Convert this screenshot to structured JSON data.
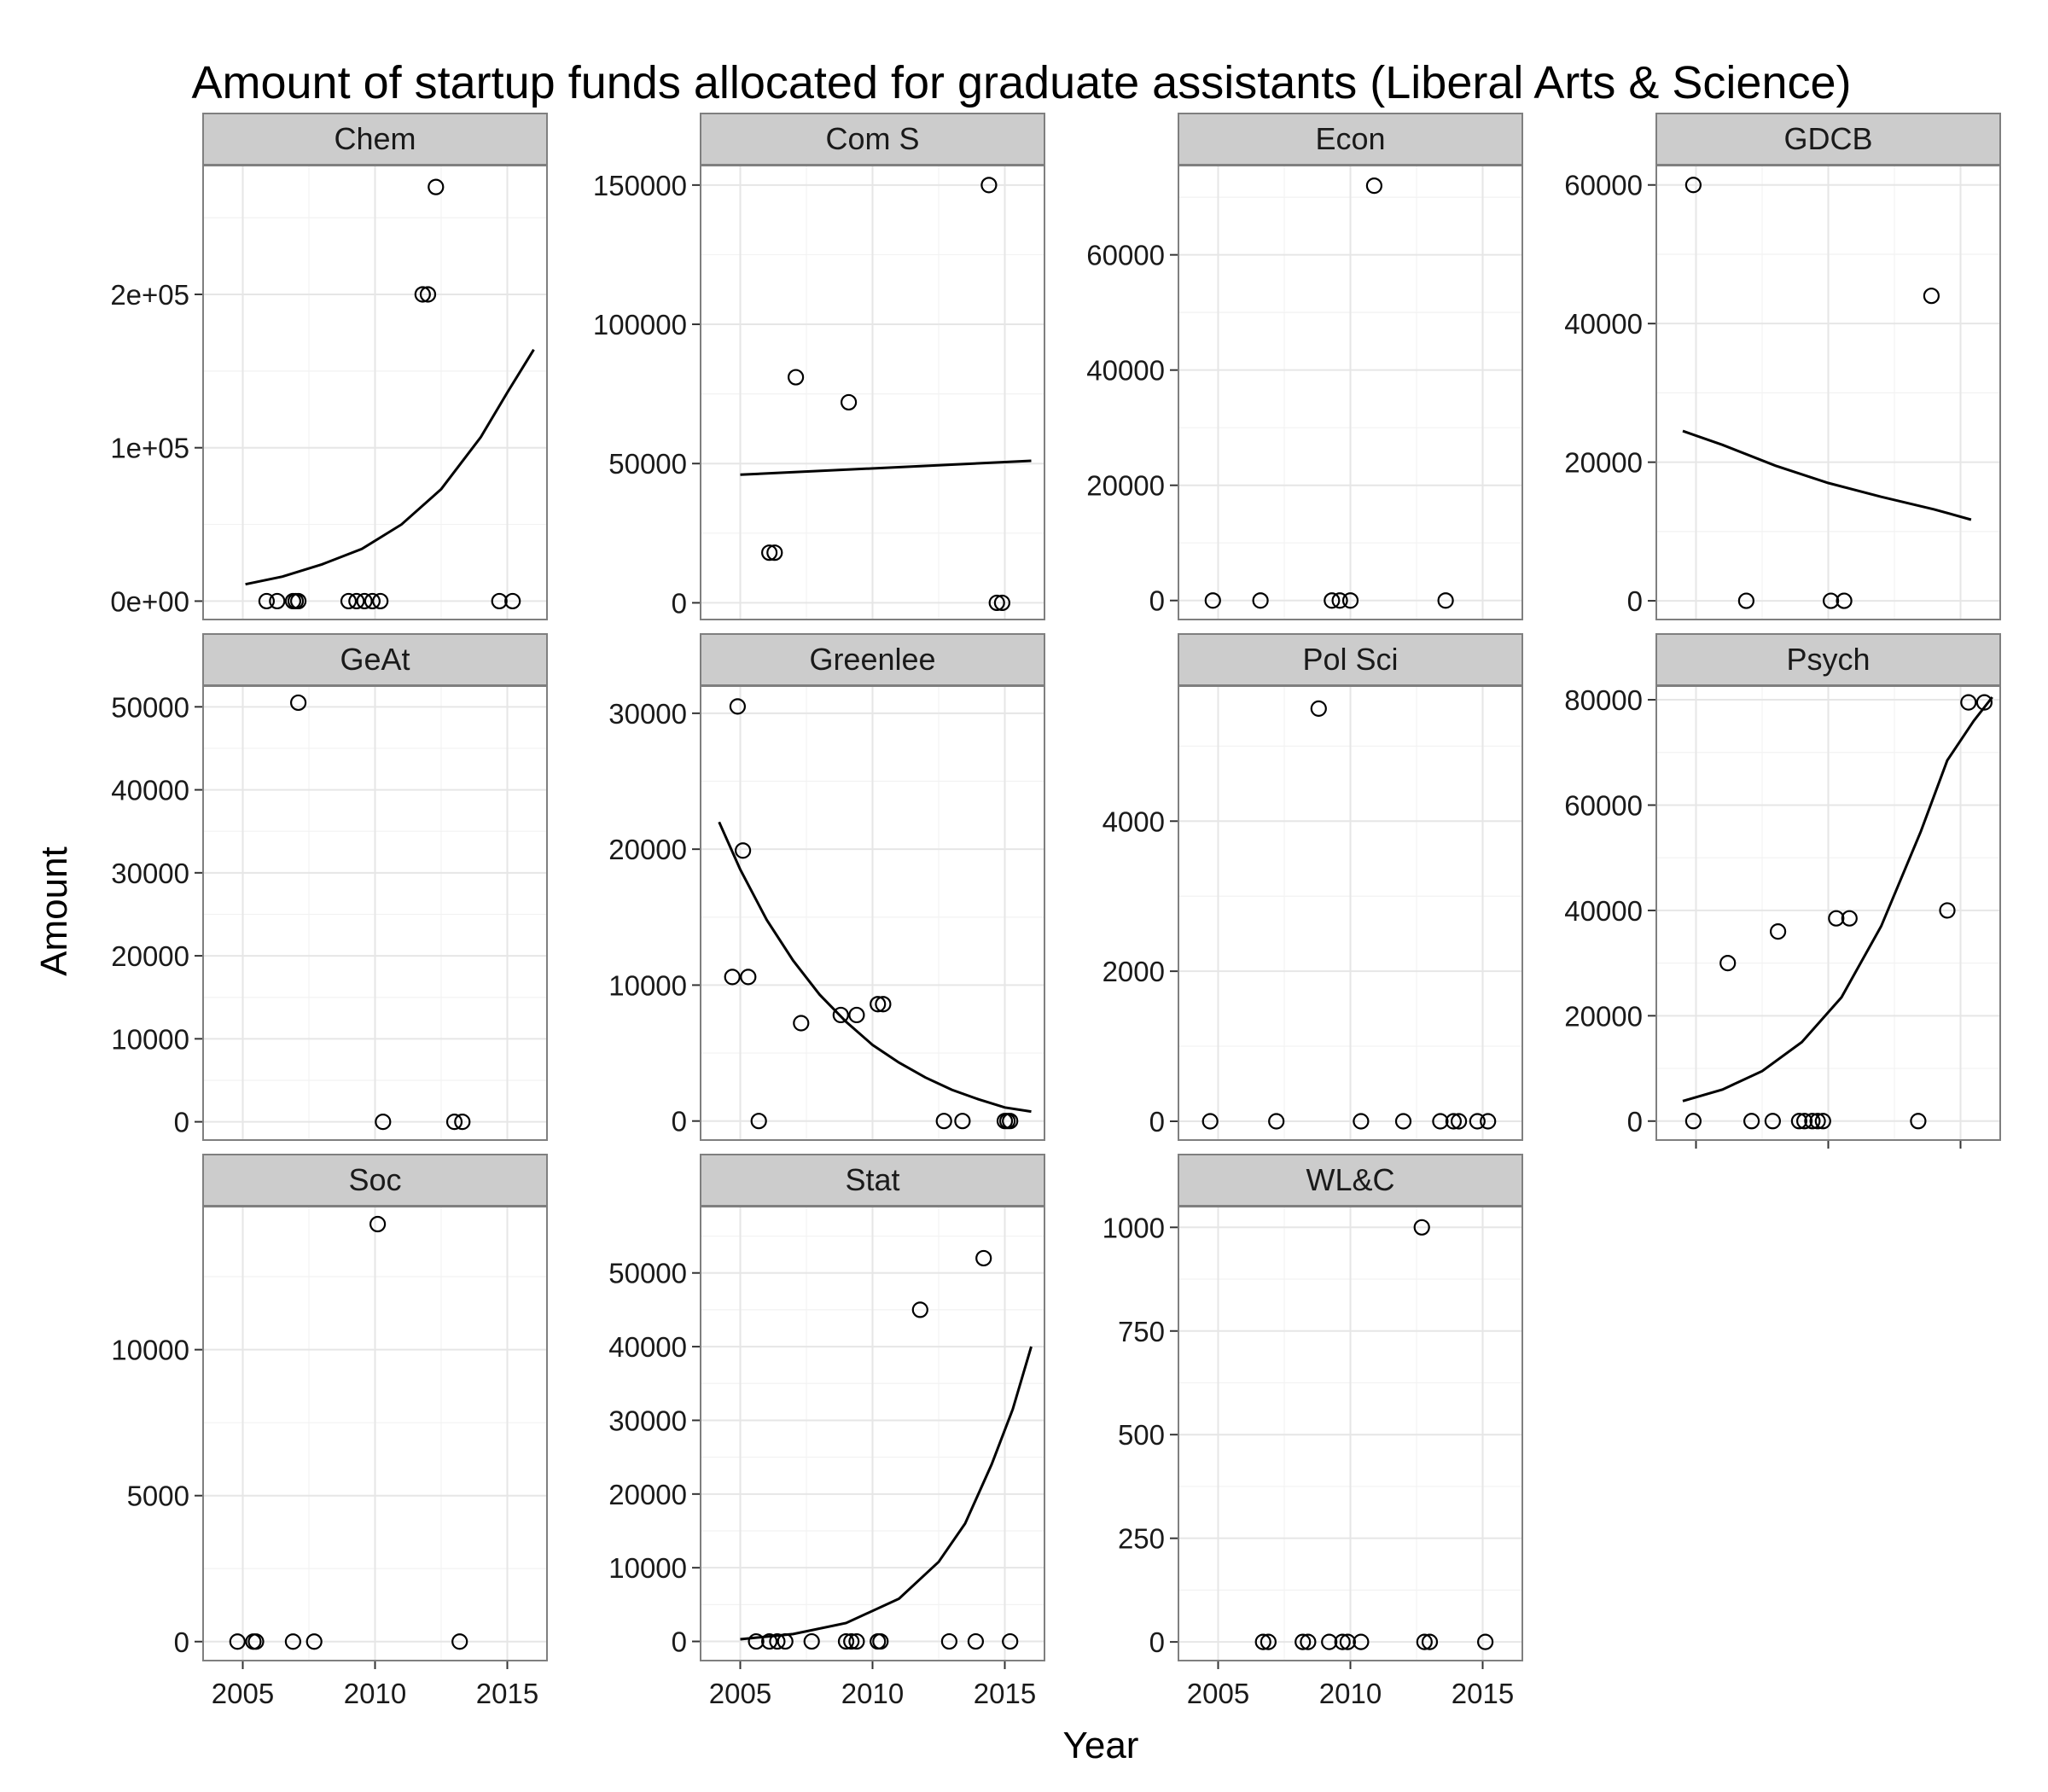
{
  "chart_data": {
    "type": "scatter",
    "title": "Amount of startup funds allocated for graduate assistants (Liberal Arts & Science)",
    "xlabel": "Year",
    "ylabel": "Amount",
    "x_ticks": [
      2005,
      2010,
      2015
    ],
    "xlim": [
      2003.5,
      2016.5
    ],
    "grid": true,
    "panels": [
      {
        "name": "Chem",
        "ylim": [
          -12000,
          284000
        ],
        "y_ticks": [
          0,
          100000,
          200000
        ],
        "y_tick_labels": [
          "0e+00",
          "1e+05",
          "2e+05"
        ],
        "points": [
          [
            2005.9,
            0
          ],
          [
            2006.3,
            0
          ],
          [
            2006.9,
            0
          ],
          [
            2007.0,
            0
          ],
          [
            2007.1,
            0
          ],
          [
            2009.0,
            0
          ],
          [
            2009.3,
            0
          ],
          [
            2009.6,
            0
          ],
          [
            2009.9,
            0
          ],
          [
            2010.2,
            0
          ],
          [
            2011.8,
            200000
          ],
          [
            2012.0,
            200000
          ],
          [
            2012.3,
            270000
          ],
          [
            2014.7,
            0
          ],
          [
            2015.2,
            0
          ]
        ],
        "fit": [
          [
            2005.1,
            11000
          ],
          [
            2006.5,
            16000
          ],
          [
            2008.0,
            24000
          ],
          [
            2009.5,
            34000
          ],
          [
            2011.0,
            50000
          ],
          [
            2012.5,
            73000
          ],
          [
            2014.0,
            107000
          ],
          [
            2015.0,
            136000
          ],
          [
            2016.0,
            164000
          ]
        ]
      },
      {
        "name": "Com S",
        "ylim": [
          -6000,
          157000
        ],
        "y_ticks": [
          0,
          50000,
          100000,
          150000
        ],
        "y_tick_labels": [
          "0",
          "50000",
          "100000",
          "150000"
        ],
        "points": [
          [
            2006.1,
            18000
          ],
          [
            2006.3,
            18000
          ],
          [
            2007.1,
            81000
          ],
          [
            2009.1,
            72000
          ],
          [
            2014.4,
            150000
          ],
          [
            2014.7,
            0
          ],
          [
            2014.9,
            0
          ]
        ],
        "fit": [
          [
            2005.0,
            46000
          ],
          [
            2016.0,
            51000
          ]
        ]
      },
      {
        "name": "Econ",
        "ylim": [
          -3300,
          75500
        ],
        "y_ticks": [
          0,
          20000,
          40000,
          60000
        ],
        "y_tick_labels": [
          "0",
          "20000",
          "40000",
          "60000"
        ],
        "points": [
          [
            2004.8,
            0
          ],
          [
            2006.6,
            0
          ],
          [
            2009.3,
            0
          ],
          [
            2009.6,
            0
          ],
          [
            2010.0,
            0
          ],
          [
            2010.9,
            72000
          ],
          [
            2013.6,
            0
          ]
        ],
        "fit": []
      },
      {
        "name": "GDCB",
        "ylim": [
          -2700,
          62800
        ],
        "y_ticks": [
          0,
          20000,
          40000,
          60000
        ],
        "y_tick_labels": [
          "0",
          "20000",
          "40000",
          "60000"
        ],
        "points": [
          [
            2004.9,
            60000
          ],
          [
            2006.9,
            0
          ],
          [
            2010.1,
            0
          ],
          [
            2010.6,
            0
          ],
          [
            2013.9,
            44000
          ]
        ],
        "fit": [
          [
            2004.5,
            24500
          ],
          [
            2006.0,
            22500
          ],
          [
            2008.0,
            19500
          ],
          [
            2010.0,
            17000
          ],
          [
            2012.0,
            15000
          ],
          [
            2014.0,
            13200
          ],
          [
            2015.4,
            11700
          ]
        ]
      },
      {
        "name": "GeAt",
        "ylim": [
          -2200,
          52500
        ],
        "y_ticks": [
          0,
          10000,
          20000,
          30000,
          40000,
          50000
        ],
        "y_tick_labels": [
          "0",
          "10000",
          "20000",
          "30000",
          "40000",
          "50000"
        ],
        "points": [
          [
            2007.1,
            50500
          ],
          [
            2010.3,
            0
          ],
          [
            2013.0,
            0
          ],
          [
            2013.3,
            0
          ]
        ],
        "fit": []
      },
      {
        "name": "Greenlee",
        "ylim": [
          -1400,
          32000
        ],
        "y_ticks": [
          0,
          10000,
          20000,
          30000
        ],
        "y_tick_labels": [
          "0",
          "10000",
          "20000",
          "30000"
        ],
        "points": [
          [
            2004.7,
            10600
          ],
          [
            2004.9,
            30500
          ],
          [
            2005.1,
            19900
          ],
          [
            2005.3,
            10600
          ],
          [
            2005.7,
            0
          ],
          [
            2007.3,
            7200
          ],
          [
            2008.8,
            7800
          ],
          [
            2009.4,
            7800
          ],
          [
            2010.2,
            8600
          ],
          [
            2010.4,
            8600
          ],
          [
            2012.7,
            0
          ],
          [
            2013.4,
            0
          ],
          [
            2015.0,
            0
          ],
          [
            2015.1,
            0
          ],
          [
            2015.2,
            0
          ]
        ],
        "fit": [
          [
            2004.2,
            22000
          ],
          [
            2005.0,
            18500
          ],
          [
            2006.0,
            14800
          ],
          [
            2007.0,
            11800
          ],
          [
            2008.0,
            9300
          ],
          [
            2009.0,
            7300
          ],
          [
            2010.0,
            5600
          ],
          [
            2011.0,
            4300
          ],
          [
            2012.0,
            3200
          ],
          [
            2013.0,
            2300
          ],
          [
            2014.0,
            1600
          ],
          [
            2015.0,
            1000
          ],
          [
            2016.0,
            700
          ]
        ]
      },
      {
        "name": "Pol Sci",
        "ylim": [
          -250,
          5800
        ],
        "y_ticks": [
          0,
          2000,
          4000
        ],
        "y_tick_labels": [
          "0",
          "2000",
          "4000"
        ],
        "points": [
          [
            2004.7,
            0
          ],
          [
            2007.2,
            0
          ],
          [
            2008.8,
            5500
          ],
          [
            2010.4,
            0
          ],
          [
            2012.0,
            0
          ],
          [
            2013.4,
            0
          ],
          [
            2013.9,
            0
          ],
          [
            2014.1,
            0
          ],
          [
            2014.8,
            0
          ],
          [
            2015.2,
            0
          ]
        ],
        "fit": []
      },
      {
        "name": "Psych",
        "ylim": [
          -3600,
          82600
        ],
        "y_ticks": [
          0,
          20000,
          40000,
          60000,
          80000
        ],
        "y_tick_labels": [
          "0",
          "20000",
          "40000",
          "60000",
          "80000"
        ],
        "points": [
          [
            2004.9,
            0
          ],
          [
            2006.2,
            30000
          ],
          [
            2007.1,
            0
          ],
          [
            2007.9,
            0
          ],
          [
            2008.1,
            36000
          ],
          [
            2008.9,
            0
          ],
          [
            2009.1,
            0
          ],
          [
            2009.4,
            0
          ],
          [
            2009.6,
            0
          ],
          [
            2009.8,
            0
          ],
          [
            2010.3,
            38500
          ],
          [
            2010.8,
            38500
          ],
          [
            2013.4,
            0
          ],
          [
            2014.5,
            40000
          ],
          [
            2015.3,
            79500
          ],
          [
            2015.9,
            79500
          ]
        ],
        "fit": [
          [
            2004.5,
            3800
          ],
          [
            2006.0,
            6000
          ],
          [
            2007.5,
            9500
          ],
          [
            2009.0,
            15000
          ],
          [
            2010.5,
            23500
          ],
          [
            2012.0,
            37000
          ],
          [
            2013.5,
            55000
          ],
          [
            2014.5,
            68500
          ],
          [
            2015.5,
            76000
          ],
          [
            2016.2,
            80500
          ]
        ]
      },
      {
        "name": "Soc",
        "ylim": [
          -650,
          14900
        ],
        "y_ticks": [
          0,
          5000,
          10000
        ],
        "y_tick_labels": [
          "0",
          "5000",
          "10000"
        ],
        "points": [
          [
            2004.8,
            0
          ],
          [
            2005.4,
            0
          ],
          [
            2005.5,
            0
          ],
          [
            2006.9,
            0
          ],
          [
            2007.7,
            0
          ],
          [
            2010.1,
            14300
          ],
          [
            2013.2,
            0
          ]
        ],
        "fit": []
      },
      {
        "name": "Stat",
        "ylim": [
          -2600,
          59000
        ],
        "y_ticks": [
          0,
          10000,
          20000,
          30000,
          40000,
          50000
        ],
        "y_tick_labels": [
          "0",
          "10000",
          "20000",
          "30000",
          "40000",
          "50000"
        ],
        "points": [
          [
            2005.6,
            0
          ],
          [
            2006.1,
            0
          ],
          [
            2006.4,
            0
          ],
          [
            2006.7,
            0
          ],
          [
            2007.7,
            0
          ],
          [
            2009.0,
            0
          ],
          [
            2009.2,
            0
          ],
          [
            2009.4,
            0
          ],
          [
            2010.2,
            0
          ],
          [
            2010.3,
            0
          ],
          [
            2011.8,
            45000
          ],
          [
            2012.9,
            0
          ],
          [
            2013.9,
            0
          ],
          [
            2014.2,
            52000
          ],
          [
            2015.2,
            0
          ]
        ],
        "fit": [
          [
            2005.0,
            300
          ],
          [
            2007.0,
            1000
          ],
          [
            2009.0,
            2500
          ],
          [
            2011.0,
            5800
          ],
          [
            2012.5,
            10800
          ],
          [
            2013.5,
            16000
          ],
          [
            2014.5,
            24000
          ],
          [
            2015.3,
            31500
          ],
          [
            2016.0,
            40000
          ]
        ]
      },
      {
        "name": "WL&C",
        "ylim": [
          -45,
          1050
        ],
        "y_ticks": [
          0,
          250,
          500,
          750,
          1000
        ],
        "y_tick_labels": [
          "0",
          "250",
          "500",
          "750",
          "1000"
        ],
        "points": [
          [
            2006.7,
            0
          ],
          [
            2006.9,
            0
          ],
          [
            2008.2,
            0
          ],
          [
            2008.4,
            0
          ],
          [
            2009.2,
            0
          ],
          [
            2009.7,
            0
          ],
          [
            2009.9,
            0
          ],
          [
            2010.4,
            0
          ],
          [
            2012.7,
            1000
          ],
          [
            2012.8,
            0
          ],
          [
            2013.0,
            0
          ],
          [
            2015.1,
            0
          ]
        ],
        "fit": []
      }
    ]
  }
}
